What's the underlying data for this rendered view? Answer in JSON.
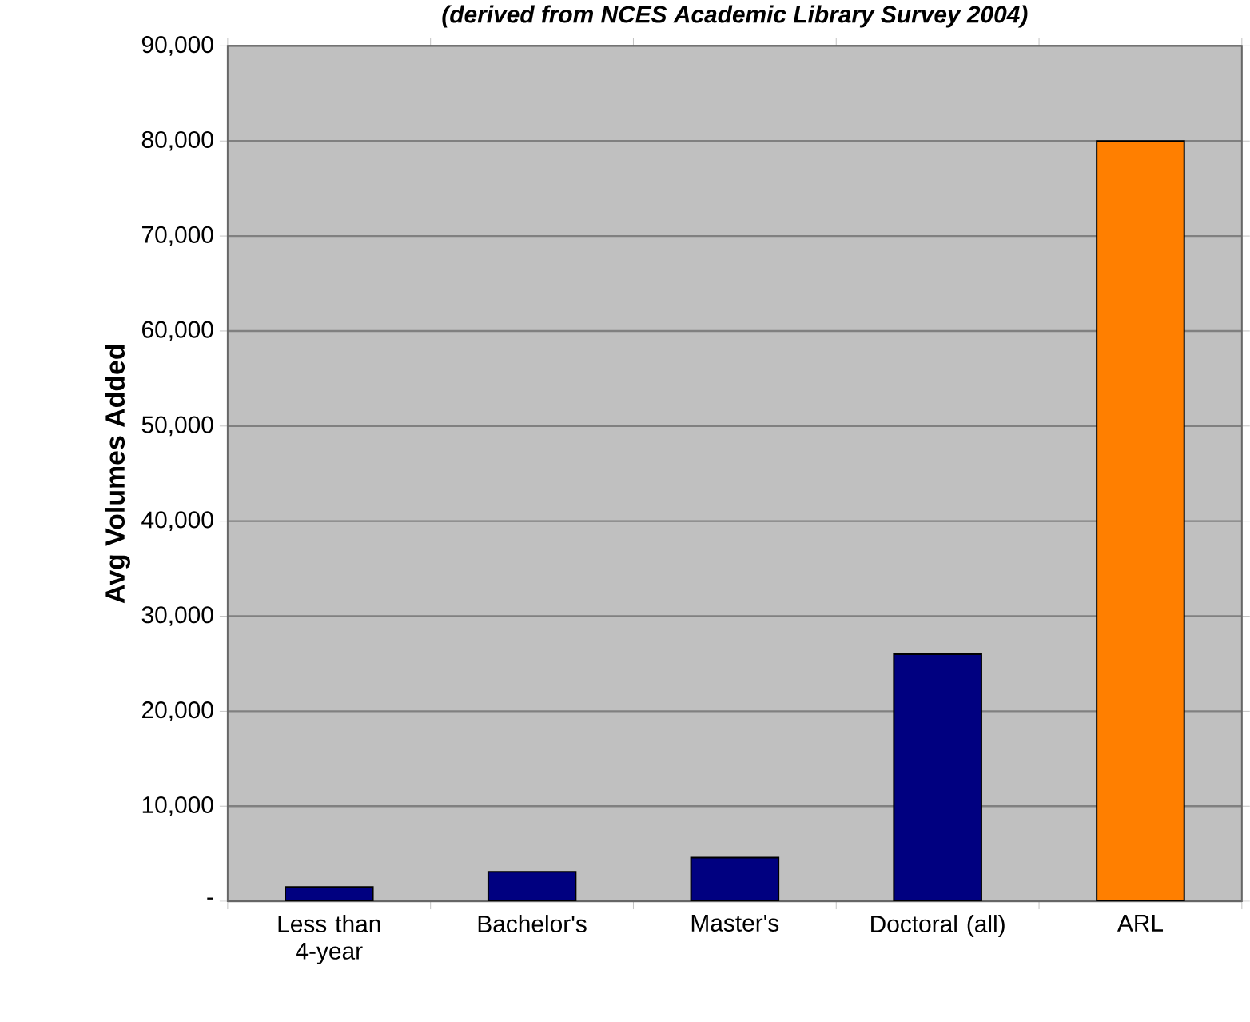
{
  "chart_data": {
    "type": "bar",
    "subtitle": "(derived from NCES Academic Library Survey 2004)",
    "ylabel": "Avg Volumes Added",
    "categories": [
      "Less than 4-year",
      "Bachelor's",
      "Master's",
      "Doctoral (all)",
      "ARL"
    ],
    "values": [
      1500,
      3100,
      4600,
      26000,
      80000
    ],
    "colors": [
      "#000080",
      "#000080",
      "#000080",
      "#000080",
      "#ff7f00"
    ],
    "ylim": [
      0,
      90000
    ],
    "yticks": [
      {
        "value": 0,
        "label": "-"
      },
      {
        "value": 10000,
        "label": "10,000"
      },
      {
        "value": 20000,
        "label": "20,000"
      },
      {
        "value": 30000,
        "label": "30,000"
      },
      {
        "value": 40000,
        "label": "40,000"
      },
      {
        "value": 50000,
        "label": "50,000"
      },
      {
        "value": 60000,
        "label": "60,000"
      },
      {
        "value": 70000,
        "label": "70,000"
      },
      {
        "value": 80000,
        "label": "80,000"
      },
      {
        "value": 90000,
        "label": "90,000"
      }
    ],
    "grid": "y"
  }
}
